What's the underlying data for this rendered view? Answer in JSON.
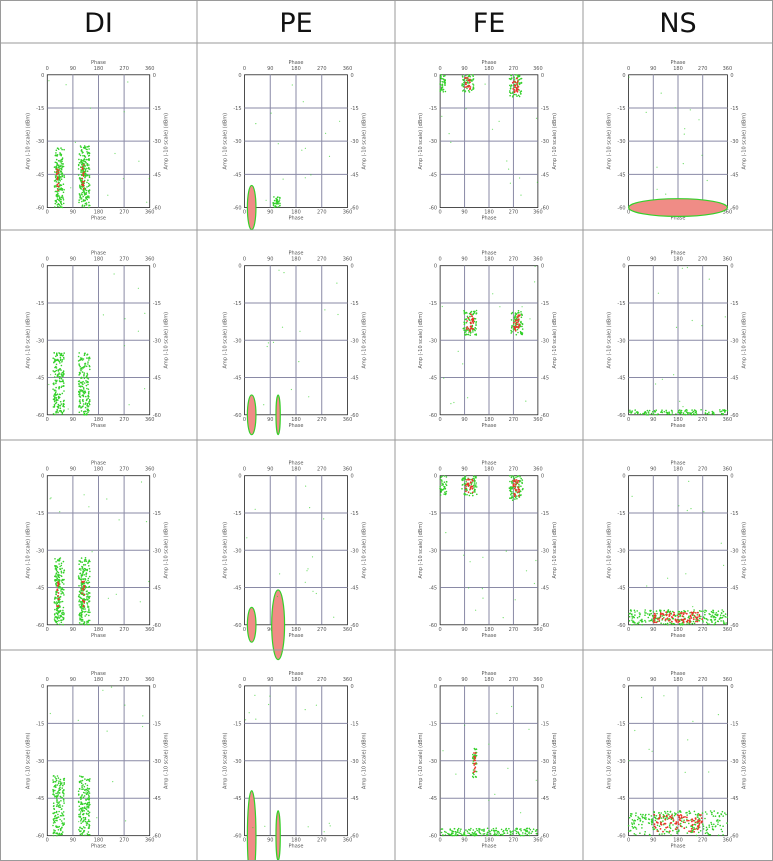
{
  "colors": {
    "green": "#34d02a",
    "red": "#e8362a",
    "pink": "#f08c86",
    "grid": "#8a8aa6",
    "frame": "#222222"
  },
  "chart_data": {
    "type": "scatter",
    "columns": [
      "DI",
      "PE",
      "FE",
      "NS"
    ],
    "rows": 4,
    "panel": {
      "xlabel": "Phase",
      "ylabel": "Amp (-10 scale) (dBm)",
      "x_ticks": [
        "0",
        "90",
        "180",
        "270",
        "360"
      ],
      "y_ticks": [
        "0",
        "-15",
        "-30",
        "-45",
        "-60"
      ],
      "xlim": [
        0,
        360
      ],
      "ylim": [
        -60,
        0
      ]
    },
    "cells": [
      {
        "col": "DI",
        "row": 1,
        "clusters": [
          {
            "phase": [
              25,
              60
            ],
            "amp": [
              -60,
              -33
            ],
            "color": "green"
          },
          {
            "phase": [
              30,
              45
            ],
            "amp": [
              -55,
              -40
            ],
            "color": "red"
          },
          {
            "phase": [
              110,
              150
            ],
            "amp": [
              -60,
              -32
            ],
            "color": "green"
          },
          {
            "phase": [
              118,
              135
            ],
            "amp": [
              -55,
              -38
            ],
            "color": "red"
          }
        ]
      },
      {
        "col": "PE",
        "row": 1,
        "clusters": [
          {
            "phase": [
              10,
              40
            ],
            "amp": [
              -60,
              -50
            ],
            "color": "pink"
          },
          {
            "phase": [
              100,
              125
            ],
            "amp": [
              -60,
              -55
            ],
            "color": "green"
          }
        ]
      },
      {
        "col": "FE",
        "row": 1,
        "clusters": [
          {
            "phase": [
              0,
              20
            ],
            "amp": [
              -8,
              0
            ],
            "color": "green"
          },
          {
            "phase": [
              80,
              125
            ],
            "amp": [
              -8,
              0
            ],
            "color": "red"
          },
          {
            "phase": [
              255,
              300
            ],
            "amp": [
              -10,
              0
            ],
            "color": "red"
          }
        ]
      },
      {
        "col": "NS",
        "row": 1,
        "clusters": [
          {
            "phase": [
              0,
              360
            ],
            "amp": [
              -60,
              -56
            ],
            "color": "pink"
          }
        ]
      },
      {
        "col": "DI",
        "row": 2,
        "clusters": [
          {
            "phase": [
              20,
              60
            ],
            "amp": [
              -60,
              -35
            ],
            "color": "green"
          },
          {
            "phase": [
              110,
              150
            ],
            "amp": [
              -60,
              -35
            ],
            "color": "green"
          }
        ]
      },
      {
        "col": "PE",
        "row": 2,
        "clusters": [
          {
            "phase": [
              10,
              40
            ],
            "amp": [
              -60,
              -52
            ],
            "color": "pink"
          },
          {
            "phase": [
              110,
              125
            ],
            "amp": [
              -60,
              -52
            ],
            "color": "pink"
          }
        ]
      },
      {
        "col": "FE",
        "row": 2,
        "clusters": [
          {
            "phase": [
              85,
              135
            ],
            "amp": [
              -28,
              -18
            ],
            "color": "red"
          },
          {
            "phase": [
              260,
              305
            ],
            "amp": [
              -28,
              -18
            ],
            "color": "red"
          }
        ]
      },
      {
        "col": "NS",
        "row": 2,
        "clusters": [
          {
            "phase": [
              0,
              360
            ],
            "amp": [
              -60,
              -58
            ],
            "color": "green"
          }
        ]
      },
      {
        "col": "DI",
        "row": 3,
        "clusters": [
          {
            "phase": [
              25,
              60
            ],
            "amp": [
              -60,
              -33
            ],
            "color": "green"
          },
          {
            "phase": [
              30,
              45
            ],
            "amp": [
              -55,
              -40
            ],
            "color": "red"
          },
          {
            "phase": [
              110,
              150
            ],
            "amp": [
              -60,
              -33
            ],
            "color": "green"
          },
          {
            "phase": [
              118,
              135
            ],
            "amp": [
              -55,
              -40
            ],
            "color": "red"
          }
        ]
      },
      {
        "col": "PE",
        "row": 3,
        "clusters": [
          {
            "phase": [
              10,
              40
            ],
            "amp": [
              -60,
              -53
            ],
            "color": "pink"
          },
          {
            "phase": [
              95,
              140
            ],
            "amp": [
              -60,
              -46
            ],
            "color": "pink"
          }
        ]
      },
      {
        "col": "FE",
        "row": 3,
        "clusters": [
          {
            "phase": [
              0,
              25
            ],
            "amp": [
              -8,
              0
            ],
            "color": "green"
          },
          {
            "phase": [
              80,
              135
            ],
            "amp": [
              -8,
              0
            ],
            "color": "red"
          },
          {
            "phase": [
              255,
              305
            ],
            "amp": [
              -10,
              0
            ],
            "color": "red"
          }
        ]
      },
      {
        "col": "NS",
        "row": 3,
        "clusters": [
          {
            "phase": [
              0,
              360
            ],
            "amp": [
              -60,
              -54
            ],
            "color": "red"
          }
        ]
      },
      {
        "col": "DI",
        "row": 4,
        "clusters": [
          {
            "phase": [
              20,
              60
            ],
            "amp": [
              -60,
              -36
            ],
            "color": "green"
          },
          {
            "phase": [
              110,
              150
            ],
            "amp": [
              -60,
              -36
            ],
            "color": "green"
          }
        ]
      },
      {
        "col": "PE",
        "row": 4,
        "clusters": [
          {
            "phase": [
              10,
              40
            ],
            "amp": [
              -60,
              -42
            ],
            "color": "pink"
          },
          {
            "phase": [
              110,
              125
            ],
            "amp": [
              -60,
              -50
            ],
            "color": "pink"
          }
        ]
      },
      {
        "col": "FE",
        "row": 4,
        "clusters": [
          {
            "phase": [
              120,
              135
            ],
            "amp": [
              -37,
              -25
            ],
            "color": "red"
          },
          {
            "phase": [
              0,
              360
            ],
            "amp": [
              -60,
              -57
            ],
            "color": "green"
          }
        ]
      },
      {
        "col": "NS",
        "row": 4,
        "clusters": [
          {
            "phase": [
              0,
              360
            ],
            "amp": [
              -60,
              -50
            ],
            "color": "red"
          }
        ]
      }
    ]
  }
}
